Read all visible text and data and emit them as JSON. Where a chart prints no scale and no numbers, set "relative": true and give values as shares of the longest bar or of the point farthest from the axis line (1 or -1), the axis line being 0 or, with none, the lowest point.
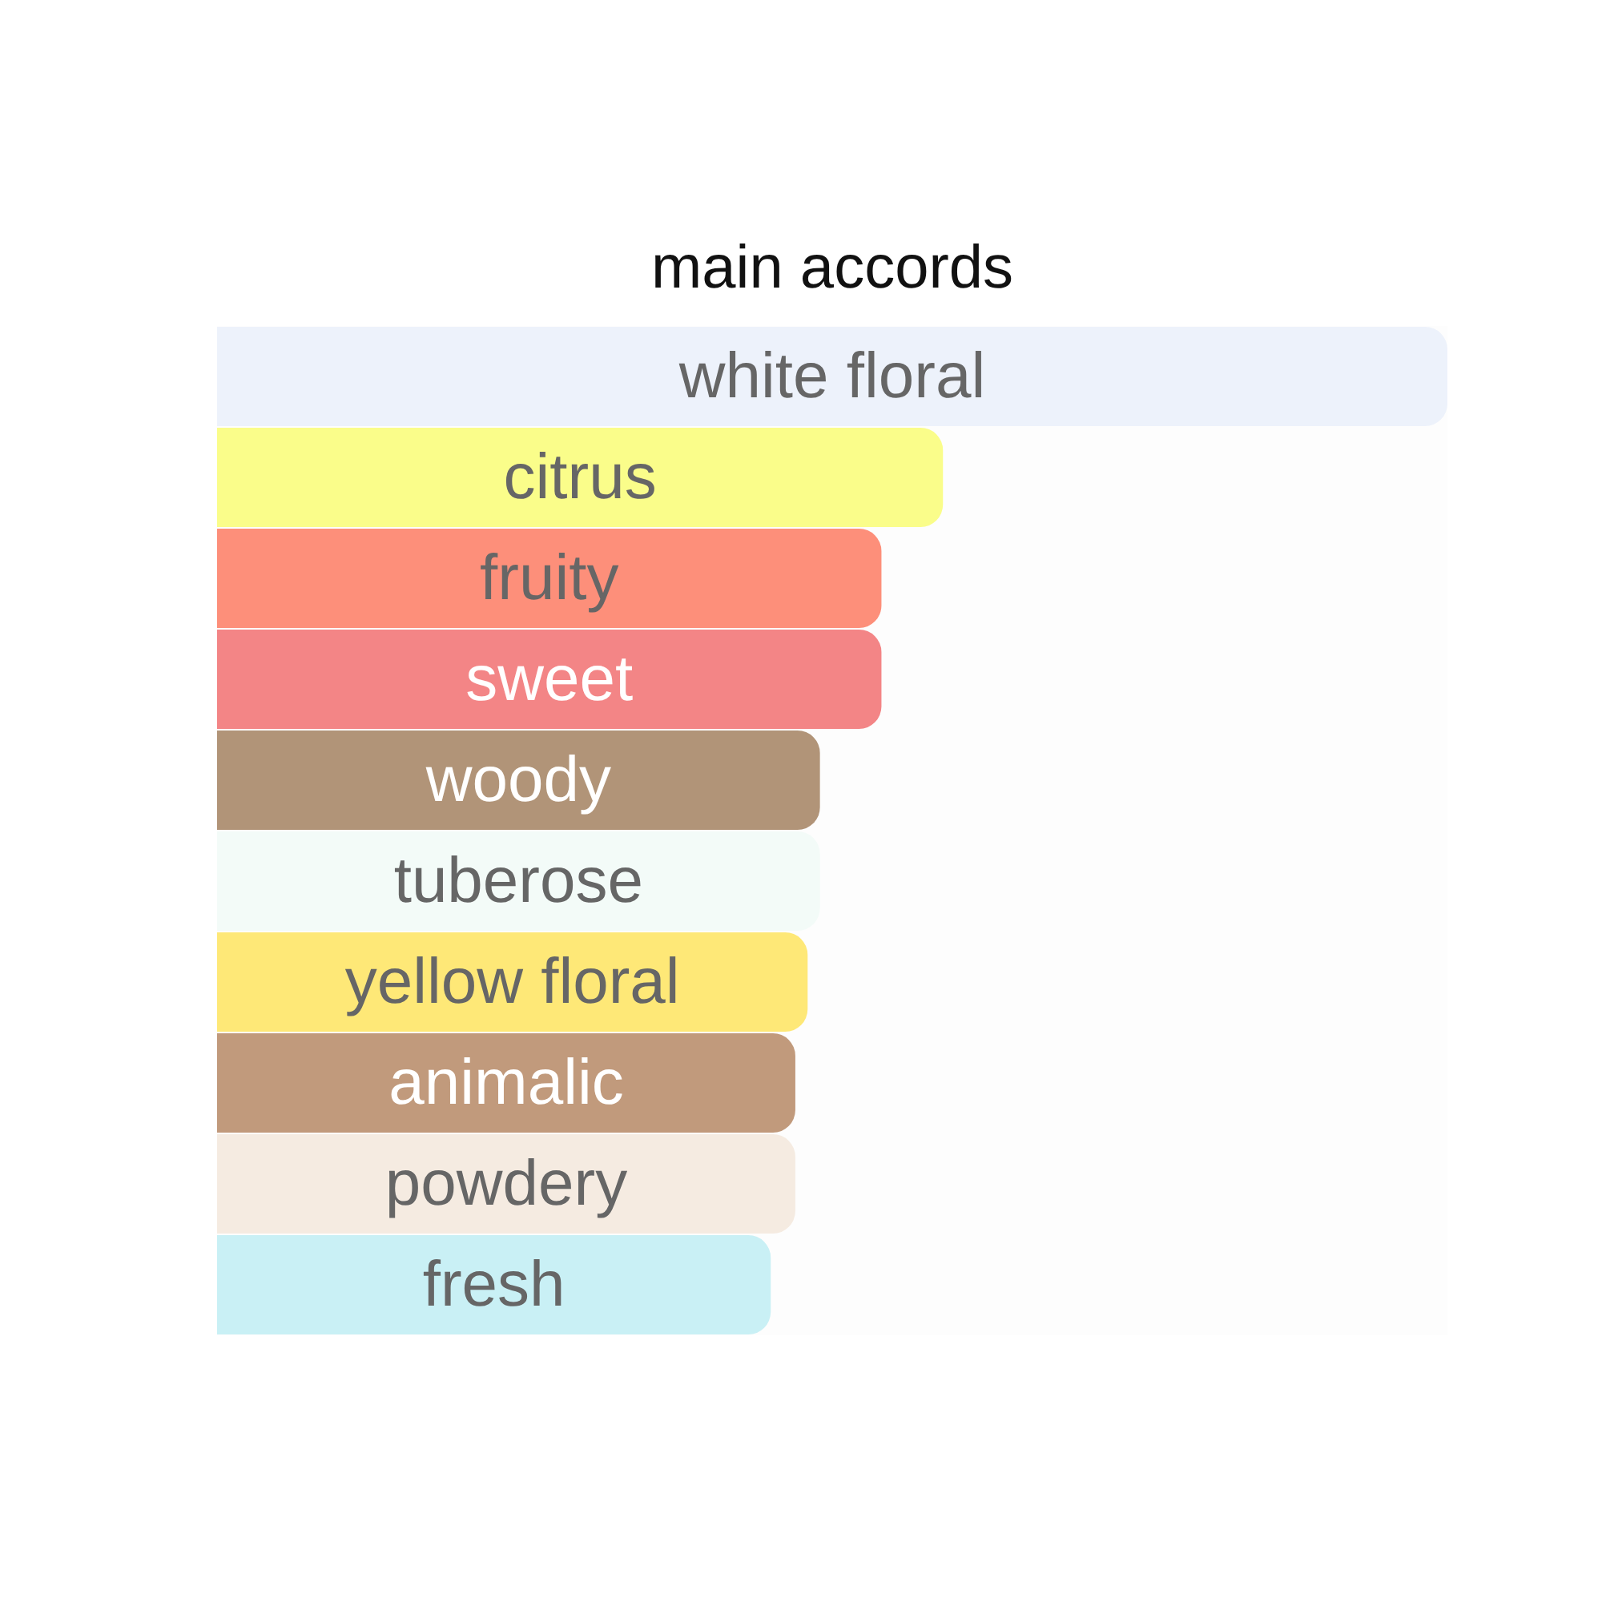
{
  "chart_data": {
    "type": "bar",
    "orientation": "horizontal",
    "relative": true,
    "title": "main accords",
    "categories": [
      "white floral",
      "citrus",
      "fruity",
      "sweet",
      "woody",
      "tuberose",
      "yellow floral",
      "animalic",
      "powdery",
      "fresh"
    ],
    "values": [
      1,
      0.59,
      0.54,
      0.54,
      0.49,
      0.49,
      0.48,
      0.47,
      0.47,
      0.45
    ],
    "colors": [
      "#edf2fb",
      "#fafd8a",
      "#fd8f7a",
      "#f38586",
      "#b19478",
      "#f3fbf8",
      "#fee877",
      "#c19a7c",
      "#f5ebe1",
      "#c9f0f5"
    ]
  }
}
